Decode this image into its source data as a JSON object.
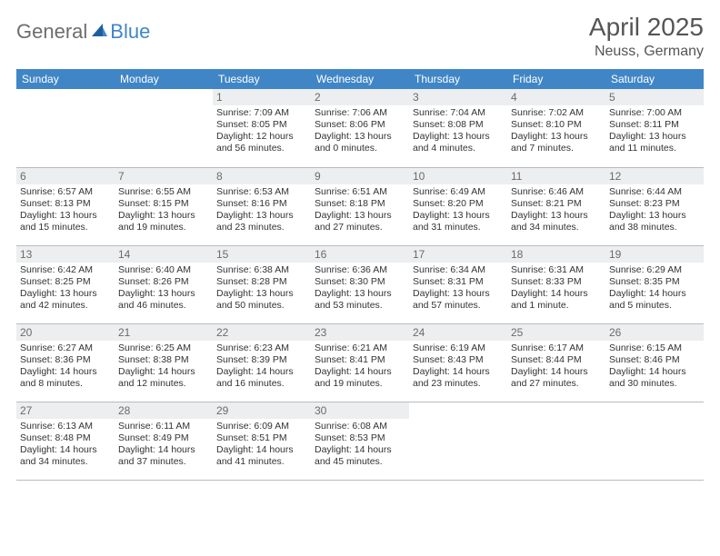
{
  "logo": {
    "general": "General",
    "blue": "Blue"
  },
  "title": "April 2025",
  "location": "Neuss, Germany",
  "colors": {
    "header_bg": "#4086c7",
    "header_text": "#ffffff",
    "daynum_bg": "#eceeef",
    "daynum_text": "#6b6b6b",
    "cell_text": "#333333",
    "border": "#bbbbbb"
  },
  "weekdays": [
    "Sunday",
    "Monday",
    "Tuesday",
    "Wednesday",
    "Thursday",
    "Friday",
    "Saturday"
  ],
  "weeks": [
    [
      null,
      null,
      {
        "day": "1",
        "sunrise": "Sunrise: 7:09 AM",
        "sunset": "Sunset: 8:05 PM",
        "daylight1": "Daylight: 12 hours",
        "daylight2": "and 56 minutes."
      },
      {
        "day": "2",
        "sunrise": "Sunrise: 7:06 AM",
        "sunset": "Sunset: 8:06 PM",
        "daylight1": "Daylight: 13 hours",
        "daylight2": "and 0 minutes."
      },
      {
        "day": "3",
        "sunrise": "Sunrise: 7:04 AM",
        "sunset": "Sunset: 8:08 PM",
        "daylight1": "Daylight: 13 hours",
        "daylight2": "and 4 minutes."
      },
      {
        "day": "4",
        "sunrise": "Sunrise: 7:02 AM",
        "sunset": "Sunset: 8:10 PM",
        "daylight1": "Daylight: 13 hours",
        "daylight2": "and 7 minutes."
      },
      {
        "day": "5",
        "sunrise": "Sunrise: 7:00 AM",
        "sunset": "Sunset: 8:11 PM",
        "daylight1": "Daylight: 13 hours",
        "daylight2": "and 11 minutes."
      }
    ],
    [
      {
        "day": "6",
        "sunrise": "Sunrise: 6:57 AM",
        "sunset": "Sunset: 8:13 PM",
        "daylight1": "Daylight: 13 hours",
        "daylight2": "and 15 minutes."
      },
      {
        "day": "7",
        "sunrise": "Sunrise: 6:55 AM",
        "sunset": "Sunset: 8:15 PM",
        "daylight1": "Daylight: 13 hours",
        "daylight2": "and 19 minutes."
      },
      {
        "day": "8",
        "sunrise": "Sunrise: 6:53 AM",
        "sunset": "Sunset: 8:16 PM",
        "daylight1": "Daylight: 13 hours",
        "daylight2": "and 23 minutes."
      },
      {
        "day": "9",
        "sunrise": "Sunrise: 6:51 AM",
        "sunset": "Sunset: 8:18 PM",
        "daylight1": "Daylight: 13 hours",
        "daylight2": "and 27 minutes."
      },
      {
        "day": "10",
        "sunrise": "Sunrise: 6:49 AM",
        "sunset": "Sunset: 8:20 PM",
        "daylight1": "Daylight: 13 hours",
        "daylight2": "and 31 minutes."
      },
      {
        "day": "11",
        "sunrise": "Sunrise: 6:46 AM",
        "sunset": "Sunset: 8:21 PM",
        "daylight1": "Daylight: 13 hours",
        "daylight2": "and 34 minutes."
      },
      {
        "day": "12",
        "sunrise": "Sunrise: 6:44 AM",
        "sunset": "Sunset: 8:23 PM",
        "daylight1": "Daylight: 13 hours",
        "daylight2": "and 38 minutes."
      }
    ],
    [
      {
        "day": "13",
        "sunrise": "Sunrise: 6:42 AM",
        "sunset": "Sunset: 8:25 PM",
        "daylight1": "Daylight: 13 hours",
        "daylight2": "and 42 minutes."
      },
      {
        "day": "14",
        "sunrise": "Sunrise: 6:40 AM",
        "sunset": "Sunset: 8:26 PM",
        "daylight1": "Daylight: 13 hours",
        "daylight2": "and 46 minutes."
      },
      {
        "day": "15",
        "sunrise": "Sunrise: 6:38 AM",
        "sunset": "Sunset: 8:28 PM",
        "daylight1": "Daylight: 13 hours",
        "daylight2": "and 50 minutes."
      },
      {
        "day": "16",
        "sunrise": "Sunrise: 6:36 AM",
        "sunset": "Sunset: 8:30 PM",
        "daylight1": "Daylight: 13 hours",
        "daylight2": "and 53 minutes."
      },
      {
        "day": "17",
        "sunrise": "Sunrise: 6:34 AM",
        "sunset": "Sunset: 8:31 PM",
        "daylight1": "Daylight: 13 hours",
        "daylight2": "and 57 minutes."
      },
      {
        "day": "18",
        "sunrise": "Sunrise: 6:31 AM",
        "sunset": "Sunset: 8:33 PM",
        "daylight1": "Daylight: 14 hours",
        "daylight2": "and 1 minute."
      },
      {
        "day": "19",
        "sunrise": "Sunrise: 6:29 AM",
        "sunset": "Sunset: 8:35 PM",
        "daylight1": "Daylight: 14 hours",
        "daylight2": "and 5 minutes."
      }
    ],
    [
      {
        "day": "20",
        "sunrise": "Sunrise: 6:27 AM",
        "sunset": "Sunset: 8:36 PM",
        "daylight1": "Daylight: 14 hours",
        "daylight2": "and 8 minutes."
      },
      {
        "day": "21",
        "sunrise": "Sunrise: 6:25 AM",
        "sunset": "Sunset: 8:38 PM",
        "daylight1": "Daylight: 14 hours",
        "daylight2": "and 12 minutes."
      },
      {
        "day": "22",
        "sunrise": "Sunrise: 6:23 AM",
        "sunset": "Sunset: 8:39 PM",
        "daylight1": "Daylight: 14 hours",
        "daylight2": "and 16 minutes."
      },
      {
        "day": "23",
        "sunrise": "Sunrise: 6:21 AM",
        "sunset": "Sunset: 8:41 PM",
        "daylight1": "Daylight: 14 hours",
        "daylight2": "and 19 minutes."
      },
      {
        "day": "24",
        "sunrise": "Sunrise: 6:19 AM",
        "sunset": "Sunset: 8:43 PM",
        "daylight1": "Daylight: 14 hours",
        "daylight2": "and 23 minutes."
      },
      {
        "day": "25",
        "sunrise": "Sunrise: 6:17 AM",
        "sunset": "Sunset: 8:44 PM",
        "daylight1": "Daylight: 14 hours",
        "daylight2": "and 27 minutes."
      },
      {
        "day": "26",
        "sunrise": "Sunrise: 6:15 AM",
        "sunset": "Sunset: 8:46 PM",
        "daylight1": "Daylight: 14 hours",
        "daylight2": "and 30 minutes."
      }
    ],
    [
      {
        "day": "27",
        "sunrise": "Sunrise: 6:13 AM",
        "sunset": "Sunset: 8:48 PM",
        "daylight1": "Daylight: 14 hours",
        "daylight2": "and 34 minutes."
      },
      {
        "day": "28",
        "sunrise": "Sunrise: 6:11 AM",
        "sunset": "Sunset: 8:49 PM",
        "daylight1": "Daylight: 14 hours",
        "daylight2": "and 37 minutes."
      },
      {
        "day": "29",
        "sunrise": "Sunrise: 6:09 AM",
        "sunset": "Sunset: 8:51 PM",
        "daylight1": "Daylight: 14 hours",
        "daylight2": "and 41 minutes."
      },
      {
        "day": "30",
        "sunrise": "Sunrise: 6:08 AM",
        "sunset": "Sunset: 8:53 PM",
        "daylight1": "Daylight: 14 hours",
        "daylight2": "and 45 minutes."
      },
      null,
      null,
      null
    ]
  ]
}
